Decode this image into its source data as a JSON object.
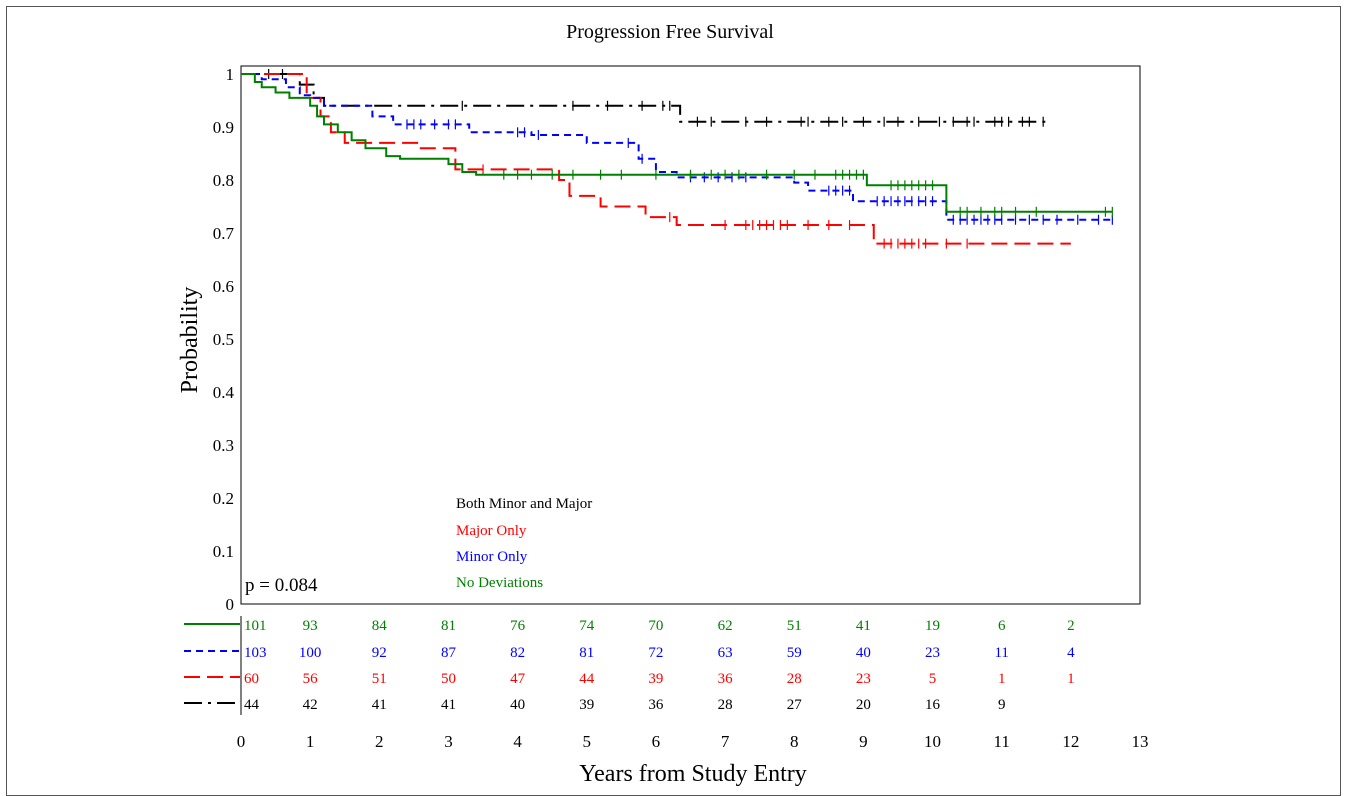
{
  "chart_data": {
    "type": "line",
    "title": "Progression Free Survival",
    "xlabel": "Years from Study Entry",
    "ylabel": "Probability",
    "xlim": [
      0,
      13
    ],
    "ylim": [
      0,
      1
    ],
    "x_ticks": [
      "0",
      "1",
      "2",
      "3",
      "4",
      "5",
      "6",
      "7",
      "8",
      "9",
      "10",
      "11",
      "12",
      "13"
    ],
    "y_ticks": [
      "0",
      "0.1",
      "0.2",
      "0.3",
      "0.4",
      "0.5",
      "0.6",
      "0.7",
      "0.8",
      "0.9",
      "1"
    ],
    "annotation": "p = 0.084",
    "legend_position": "bottom-left inside plot",
    "series": [
      {
        "name": "Both Minor and Major",
        "color": "#000000",
        "dash": "long-dash-dot",
        "steps": [
          [
            0,
            1.0
          ],
          [
            0.85,
            0.98
          ],
          [
            1.05,
            0.955
          ],
          [
            1.2,
            0.94
          ],
          [
            6.35,
            0.91
          ],
          [
            11.7,
            0.91
          ]
        ],
        "censors": [
          0.4,
          0.6,
          3.2,
          4.8,
          5.3,
          5.8,
          6.1,
          6.2,
          6.6,
          6.8,
          7.3,
          7.6,
          8.1,
          8.2,
          8.5,
          8.7,
          9.0,
          9.3,
          9.5,
          9.8,
          10.1,
          10.3,
          10.5,
          10.6,
          10.9,
          11.0,
          11.1,
          11.3,
          11.4,
          11.6
        ]
      },
      {
        "name": "Major Only",
        "color": "#ff0000",
        "dash": "long-dash",
        "steps": [
          [
            0,
            1.0
          ],
          [
            0.95,
            0.955
          ],
          [
            1.15,
            0.92
          ],
          [
            1.3,
            0.89
          ],
          [
            1.5,
            0.87
          ],
          [
            2.6,
            0.86
          ],
          [
            3.1,
            0.82
          ],
          [
            3.3,
            0.82
          ],
          [
            4.6,
            0.8
          ],
          [
            4.75,
            0.77
          ],
          [
            5.2,
            0.75
          ],
          [
            5.85,
            0.73
          ],
          [
            6.3,
            0.715
          ],
          [
            9.15,
            0.68
          ],
          [
            12.0,
            0.68
          ]
        ],
        "censors": [
          3.5,
          6.2,
          7.0,
          7.3,
          7.4,
          7.5,
          7.6,
          7.7,
          7.8,
          7.9,
          8.2,
          8.5,
          8.8,
          9.3,
          9.4,
          9.5,
          9.6,
          9.7,
          9.8,
          9.9,
          10.2,
          10.5
        ]
      },
      {
        "name": "Minor Only",
        "color": "#0000ff",
        "dash": "short-dash",
        "steps": [
          [
            0,
            1.0
          ],
          [
            0.3,
            0.99
          ],
          [
            0.65,
            0.975
          ],
          [
            0.85,
            0.96
          ],
          [
            1.0,
            0.955
          ],
          [
            1.2,
            0.94
          ],
          [
            1.9,
            0.92
          ],
          [
            2.2,
            0.905
          ],
          [
            3.3,
            0.89
          ],
          [
            4.2,
            0.885
          ],
          [
            5.0,
            0.87
          ],
          [
            5.75,
            0.84
          ],
          [
            6.0,
            0.815
          ],
          [
            6.3,
            0.805
          ],
          [
            8.0,
            0.795
          ],
          [
            8.2,
            0.78
          ],
          [
            8.85,
            0.76
          ],
          [
            10.2,
            0.725
          ],
          [
            12.6,
            0.725
          ]
        ],
        "censors": [
          2.4,
          2.5,
          2.6,
          2.8,
          3.0,
          3.1,
          4.0,
          4.1,
          4.3,
          5.6,
          5.8,
          6.5,
          6.7,
          6.9,
          7.1,
          7.3,
          8.5,
          8.6,
          8.7,
          8.8,
          9.2,
          9.3,
          9.4,
          9.5,
          9.6,
          9.7,
          9.8,
          9.9,
          10.0,
          10.3,
          10.4,
          10.5,
          10.6,
          10.7,
          10.8,
          10.9,
          11.0,
          11.2,
          11.4,
          11.6,
          11.8,
          12.1,
          12.4,
          12.6
        ]
      },
      {
        "name": "No Deviations",
        "color": "#008000",
        "dash": "solid",
        "steps": [
          [
            0,
            1.0
          ],
          [
            0.2,
            0.985
          ],
          [
            0.3,
            0.975
          ],
          [
            0.5,
            0.965
          ],
          [
            0.7,
            0.955
          ],
          [
            1.0,
            0.94
          ],
          [
            1.1,
            0.92
          ],
          [
            1.2,
            0.905
          ],
          [
            1.4,
            0.89
          ],
          [
            1.6,
            0.875
          ],
          [
            1.8,
            0.86
          ],
          [
            2.1,
            0.845
          ],
          [
            2.3,
            0.84
          ],
          [
            3.0,
            0.83
          ],
          [
            3.2,
            0.815
          ],
          [
            3.4,
            0.81
          ],
          [
            9.05,
            0.79
          ],
          [
            10.2,
            0.74
          ],
          [
            12.6,
            0.74
          ]
        ],
        "censors": [
          3.8,
          4.0,
          4.2,
          4.5,
          4.8,
          5.2,
          5.5,
          6.0,
          6.5,
          6.8,
          7.0,
          7.2,
          7.6,
          8.0,
          8.3,
          8.6,
          8.7,
          8.8,
          8.9,
          9.0,
          9.4,
          9.5,
          9.6,
          9.7,
          9.8,
          9.9,
          10.0,
          10.4,
          10.5,
          10.7,
          10.9,
          11.0,
          11.2,
          11.5,
          12.5,
          12.6
        ]
      }
    ],
    "risk_table": {
      "x": [
        0,
        1,
        2,
        3,
        4,
        5,
        6,
        7,
        8,
        9,
        10,
        11,
        12
      ],
      "rows": [
        {
          "series": "No Deviations",
          "color": "#008000",
          "dash": "solid",
          "counts": [
            "101",
            "93",
            "84",
            "81",
            "76",
            "74",
            "70",
            "62",
            "51",
            "41",
            "19",
            "6",
            "2"
          ]
        },
        {
          "series": "Minor Only",
          "color": "#0000ff",
          "dash": "short-dash",
          "counts": [
            "103",
            "100",
            "92",
            "87",
            "82",
            "81",
            "72",
            "63",
            "59",
            "40",
            "23",
            "11",
            "4"
          ]
        },
        {
          "series": "Major Only",
          "color": "#ff0000",
          "dash": "long-dash",
          "counts": [
            "60",
            "56",
            "51",
            "50",
            "47",
            "44",
            "39",
            "36",
            "28",
            "23",
            "5",
            "1",
            "1"
          ]
        },
        {
          "series": "Both Minor and Major",
          "color": "#000000",
          "dash": "long-dash-dot",
          "counts": [
            "44",
            "42",
            "41",
            "41",
            "40",
            "39",
            "36",
            "28",
            "27",
            "20",
            "16",
            "9",
            ""
          ]
        }
      ]
    }
  }
}
